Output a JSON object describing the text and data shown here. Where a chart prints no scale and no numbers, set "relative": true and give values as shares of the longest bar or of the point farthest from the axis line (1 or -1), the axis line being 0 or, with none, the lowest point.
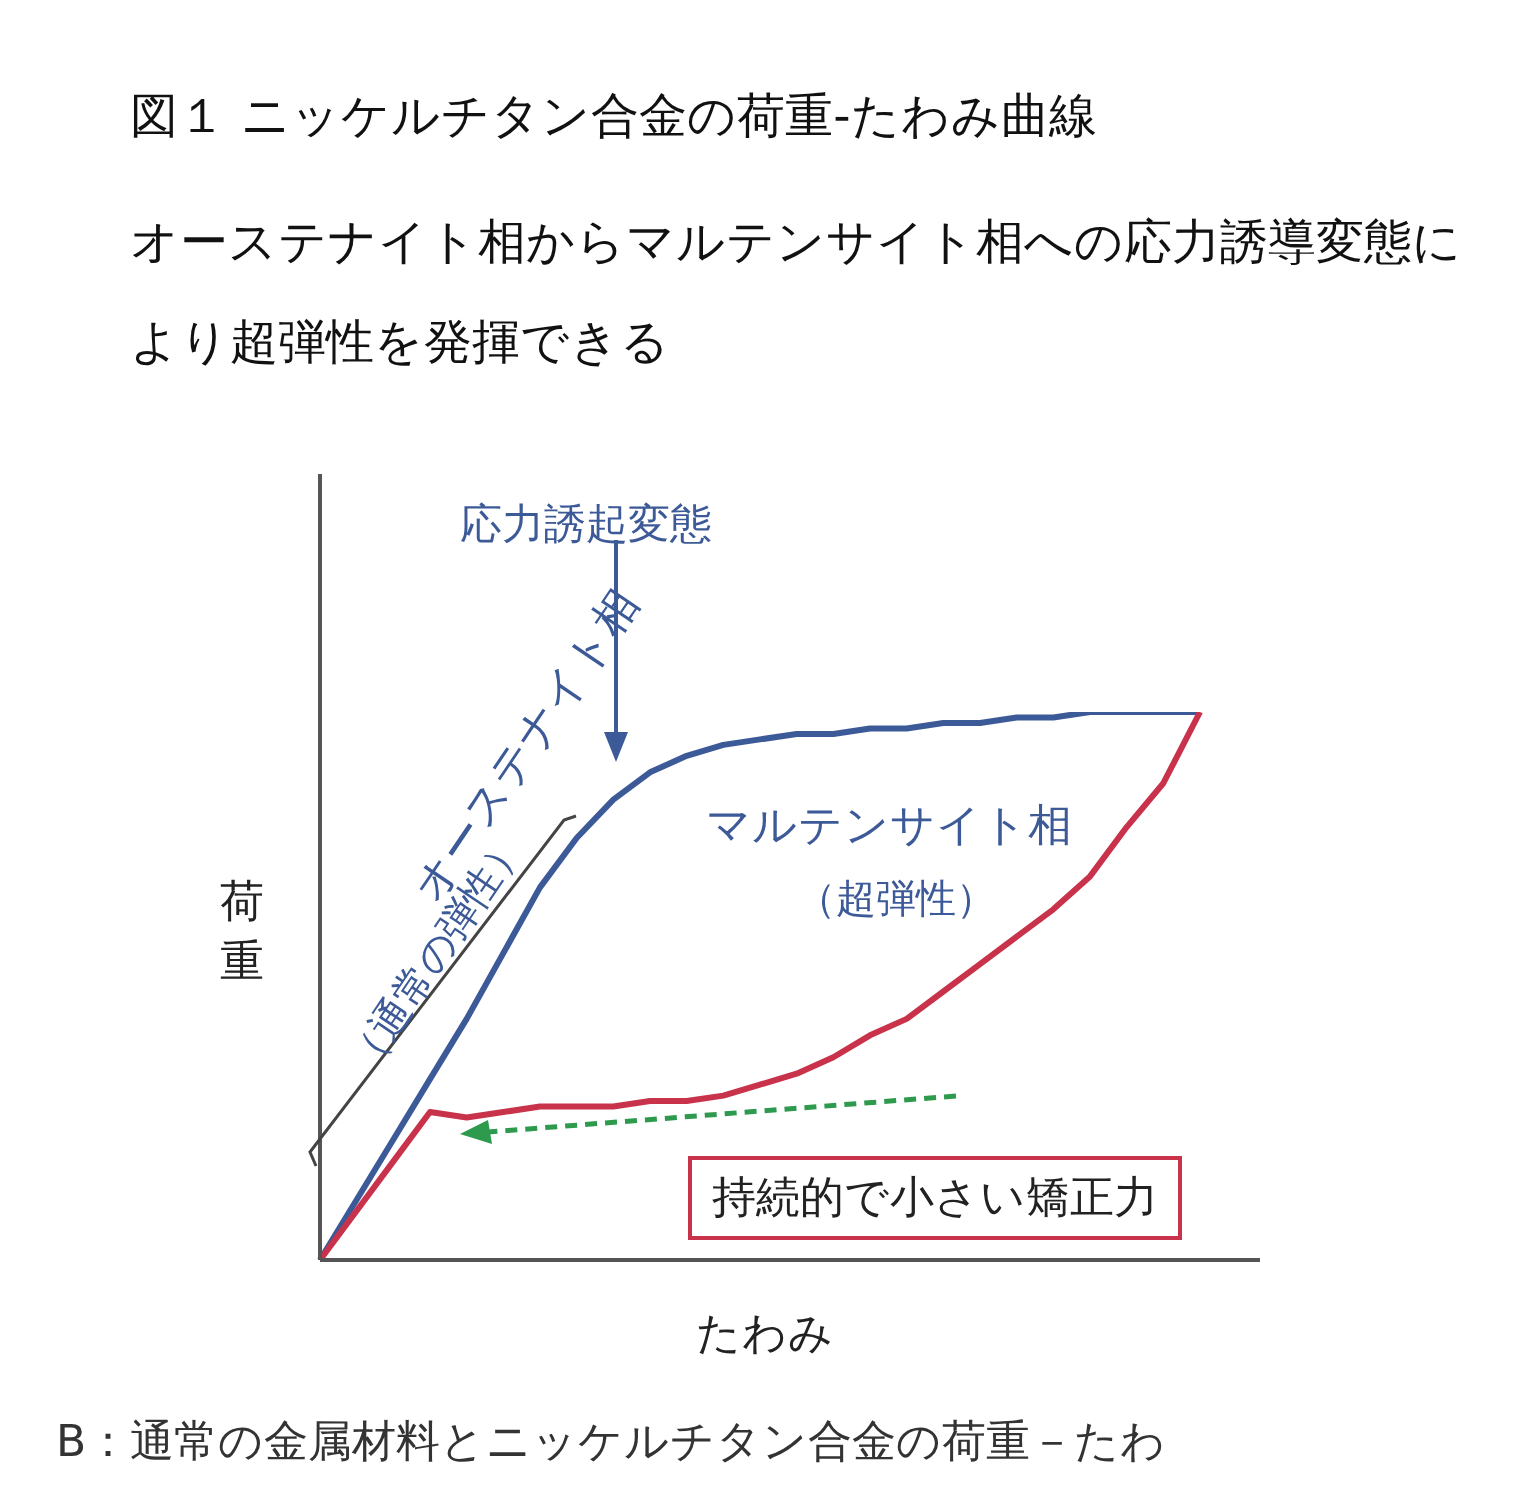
{
  "chart_data": {
    "type": "line",
    "title": "図１ ニッケルチタン合金の荷重-たわみ曲線",
    "subtitle": "オーステナイト相からマルテンサイト相への応力誘導変態により超弾性を発揮できる",
    "xlabel": "たわみ",
    "ylabel": "荷重",
    "relative": true,
    "grid": false,
    "marker": "none",
    "line_style": "solid",
    "categories": [
      null,
      null,
      null,
      null,
      null,
      null,
      null,
      null,
      null,
      null,
      null,
      null,
      null,
      null,
      null,
      null,
      null,
      null,
      null,
      null,
      null,
      null,
      null,
      null,
      null
    ],
    "series": [
      {
        "color": "#3d5a98",
        "values": [
          0,
          0.11,
          0.22,
          0.33,
          0.44,
          0.56,
          0.68,
          0.77,
          0.84,
          0.89,
          0.92,
          0.94,
          0.95,
          0.96,
          0.96,
          0.97,
          0.97,
          0.98,
          0.98,
          0.99,
          0.99,
          1.0,
          1.0,
          1.0,
          1.0
        ]
      },
      {
        "color": "#c8324a",
        "values": [
          0,
          0.09,
          0.18,
          0.27,
          0.26,
          0.27,
          0.28,
          0.28,
          0.28,
          0.29,
          0.29,
          0.3,
          0.32,
          0.34,
          0.37,
          0.41,
          0.44,
          0.49,
          0.54,
          0.59,
          0.64,
          0.7,
          0.79,
          0.87,
          1.0
        ]
      }
    ],
    "annotations": [
      "応力誘起変態",
      "オーステナイト相",
      "（通常の弾性）",
      "マルテンサイト相",
      "（超弾性）",
      "持続的で小さい矯正力",
      "B：通常の金属材料とニッケルチタン合金の荷重－たわ"
    ]
  }
}
